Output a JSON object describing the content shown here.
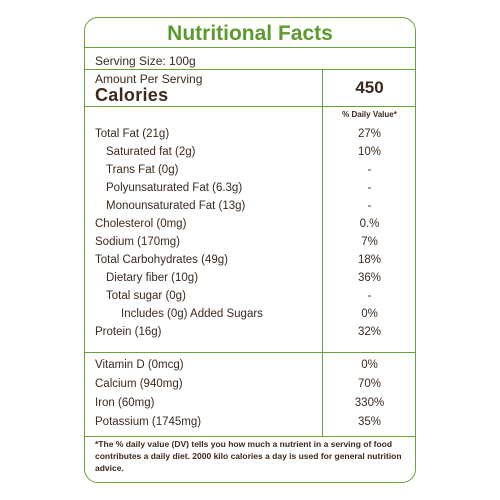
{
  "title": "Nutritional Facts",
  "serving_size": "Serving Size: 100g",
  "amount_per_serving": "Amount Per Serving",
  "calories_label": "Calories",
  "calories_value": "450",
  "daily_value_header": "% Daily Value*",
  "nutrients": [
    {
      "name": "Total Fat (21g)",
      "dv": "27%"
    },
    {
      "name": "Saturated fat (2g)",
      "dv": "10%"
    },
    {
      "name": "Trans Fat (0g)",
      "dv": "-"
    },
    {
      "name": "Polyunsaturated Fat (6.3g)",
      "dv": "-"
    },
    {
      "name": "Monounsaturated Fat (13g)",
      "dv": "-"
    },
    {
      "name": "Cholesterol (0mg)",
      "dv": "0.%"
    },
    {
      "name": "Sodium (170mg)",
      "dv": "7%"
    },
    {
      "name": "Total Carbohydrates  (49g)",
      "dv": "18%"
    },
    {
      "name": "Dietary fiber (10g)",
      "dv": "36%"
    },
    {
      "name": "Total sugar (0g)",
      "dv": "-"
    },
    {
      "name": "Includes (0g) Added Sugars",
      "dv": "0%"
    },
    {
      "name": "Protein (16g)",
      "dv": "32%"
    }
  ],
  "vitamins": [
    {
      "name": "Vitamin D (0mcg)",
      "dv": "0%"
    },
    {
      "name": "Calcium (940mg)",
      "dv": "70%"
    },
    {
      "name": "Iron (60mg)",
      "dv": "330%"
    },
    {
      "name": "Potassium (1745mg)",
      "dv": "35%"
    }
  ],
  "footnote": "*The % daily value (DV) tells you how much a nutrient in a serving of food contributes a daily diet. 2000 kilo calories a day is used for general nutrition advice.",
  "colors": {
    "border": "#6aa03c",
    "title": "#5c9a2e",
    "text": "#3c2a1e"
  }
}
